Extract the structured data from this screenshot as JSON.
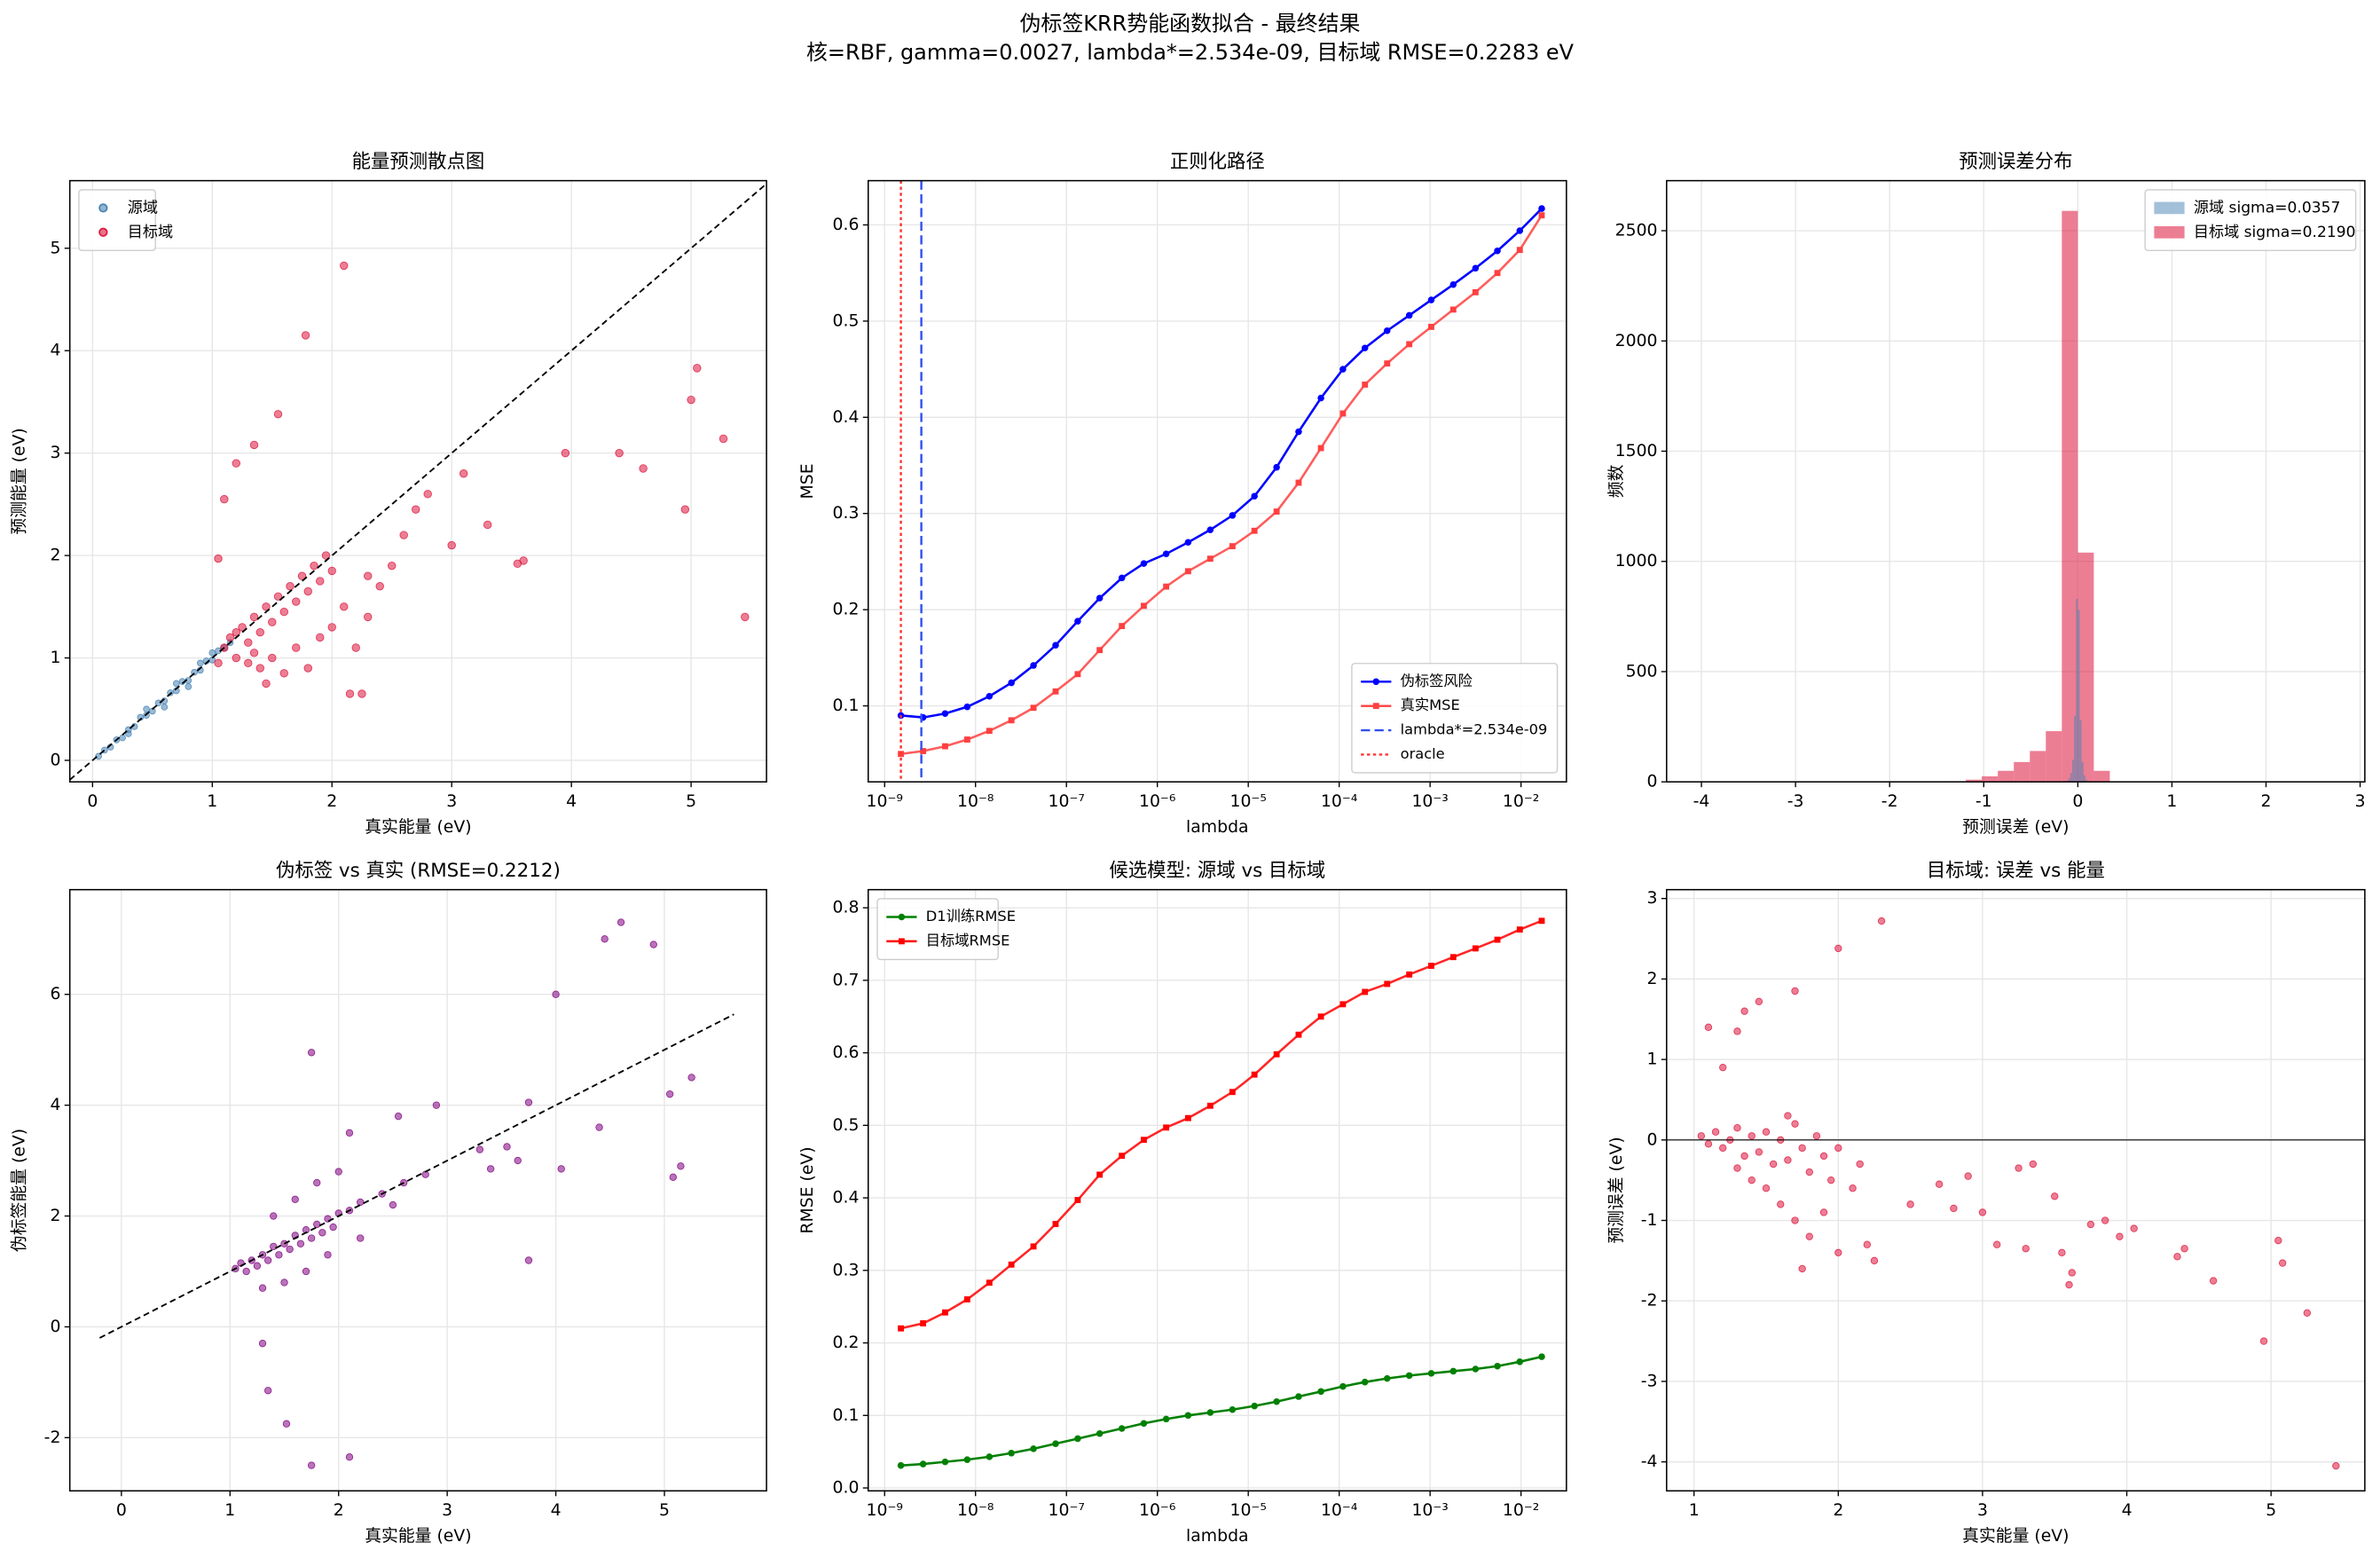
{
  "title": "伪标签KRR势能函数拟合 - 最终结果",
  "subtitle": "核=RBF, gamma=0.0027, lambda*=2.534e-09, 目标域 RMSE=0.2283 eV",
  "chart_data": [
    {
      "type": "scatter",
      "title": "能量预测散点图",
      "x_label": "真实能量 (eV)",
      "y_label": "预测能量 (eV)",
      "xlim": [
        -0.19,
        5.63
      ],
      "ylim": [
        -0.21,
        5.66
      ],
      "xticks": [
        0,
        1,
        2,
        3,
        4,
        5
      ],
      "yticks": [
        0,
        1,
        2,
        3,
        4,
        5
      ],
      "grid": true,
      "legend": "upper left",
      "reference_line": {
        "x": [
          -0.19,
          5.63
        ],
        "y": [
          -0.19,
          5.63
        ]
      },
      "series": [
        {
          "name": "源域",
          "color": "#4682b4",
          "marker_size": 2,
          "x": [
            0.05,
            0.1,
            0.15,
            0.2,
            0.25,
            0.3,
            0.35,
            0.4,
            0.45,
            0.5,
            0.55,
            0.6,
            0.65,
            0.7,
            0.75,
            0.8,
            0.85,
            0.9,
            0.95,
            1.0,
            1.05,
            1.1,
            1.15,
            0.45,
            0.6,
            0.8,
            0.9,
            1.0,
            0.7,
            0.3
          ],
          "y": [
            0.04,
            0.1,
            0.13,
            0.2,
            0.22,
            0.3,
            0.33,
            0.42,
            0.44,
            0.48,
            0.56,
            0.58,
            0.66,
            0.68,
            0.77,
            0.78,
            0.86,
            0.88,
            0.97,
            0.98,
            1.07,
            1.1,
            1.15,
            0.5,
            0.52,
            0.72,
            0.95,
            1.05,
            0.75,
            0.26
          ]
        },
        {
          "name": "目标域",
          "color": "#dc143c",
          "marker_size": 2.5,
          "x": [
            1.05,
            1.1,
            1.15,
            1.2,
            1.25,
            1.3,
            1.35,
            1.4,
            1.45,
            1.5,
            1.55,
            1.6,
            1.65,
            1.7,
            1.75,
            1.8,
            1.85,
            1.9,
            1.95,
            2.0,
            1.5,
            1.6,
            1.7,
            1.8,
            1.9,
            2.0,
            2.1,
            2.2,
            2.3,
            1.4,
            1.3,
            1.45,
            2.15,
            2.4,
            2.5,
            2.6,
            2.8,
            2.3,
            1.2,
            1.35,
            2.1,
            1.78,
            1.55,
            1.35,
            1.2,
            1.1,
            1.05,
            5.05,
            5.0,
            5.27,
            4.95,
            5.45,
            3.6,
            3.1,
            3.0,
            2.7,
            3.95,
            4.4,
            4.6,
            2.25,
            3.55,
            3.3
          ],
          "y": [
            0.95,
            1.1,
            1.2,
            1.0,
            1.3,
            1.15,
            1.4,
            1.25,
            1.5,
            1.35,
            1.6,
            1.45,
            1.7,
            1.55,
            1.8,
            1.65,
            1.9,
            1.75,
            2.0,
            1.85,
            1.0,
            0.85,
            1.1,
            0.9,
            1.2,
            1.3,
            1.5,
            1.1,
            1.4,
            0.9,
            0.95,
            0.75,
            0.65,
            1.7,
            1.9,
            2.2,
            2.6,
            1.8,
            1.25,
            1.05,
            4.83,
            4.15,
            3.38,
            3.08,
            2.9,
            2.55,
            1.97,
            3.83,
            3.52,
            3.14,
            2.45,
            1.4,
            1.95,
            2.8,
            2.1,
            2.45,
            3.0,
            3.0,
            2.85,
            0.65,
            1.92,
            2.3
          ]
        }
      ]
    },
    {
      "type": "line",
      "title": "正则化路径",
      "x_label": "lambda",
      "y_label": "MSE",
      "xscale": "log",
      "xlim": [
        6.6e-10,
        0.0316
      ],
      "ylim": [
        0.021,
        0.646
      ],
      "xticks": [
        {
          "value": 1e-09,
          "label": "10⁻⁹"
        },
        {
          "value": 1e-08,
          "label": "10⁻⁸"
        },
        {
          "value": 1e-07,
          "label": "10⁻⁷"
        },
        {
          "value": 1e-06,
          "label": "10⁻⁶"
        },
        {
          "value": 1e-05,
          "label": "10⁻⁵"
        },
        {
          "value": 0.0001,
          "label": "10⁻⁴"
        },
        {
          "value": 0.001,
          "label": "10⁻³"
        },
        {
          "value": 0.01,
          "label": "10⁻²"
        }
      ],
      "yticks": [
        0.1,
        0.2,
        0.3,
        0.4,
        0.5,
        0.6
      ],
      "grid": true,
      "legend": "lower right",
      "x": [
        1.51e-09,
        2.65e-09,
        4.63e-09,
        8.1e-09,
        1.42e-08,
        2.48e-08,
        4.34e-08,
        7.6e-08,
        1.33e-07,
        2.32e-07,
        4.07e-07,
        7.1e-07,
        1.25e-06,
        2.18e-06,
        3.82e-06,
        6.7e-06,
        1.17e-05,
        2.05e-05,
        3.58e-05,
        6.3e-05,
        0.00011,
        0.000192,
        0.000337,
        0.00059,
        0.00103,
        0.0018,
        0.00316,
        0.0055,
        0.0097,
        0.0169
      ],
      "series": [
        {
          "name": "伪标签风险",
          "color": "#0000ff",
          "marker": "o",
          "values": [
            0.09,
            0.088,
            0.092,
            0.099,
            0.11,
            0.124,
            0.142,
            0.163,
            0.188,
            0.212,
            0.233,
            0.248,
            0.258,
            0.27,
            0.283,
            0.298,
            0.318,
            0.348,
            0.385,
            0.42,
            0.45,
            0.472,
            0.49,
            0.506,
            0.522,
            0.538,
            0.555,
            0.573,
            0.594,
            0.617
          ]
        },
        {
          "name": "真实MSE",
          "color": "#ff4040",
          "marker": "s",
          "values": [
            0.05,
            0.053,
            0.058,
            0.065,
            0.074,
            0.085,
            0.098,
            0.115,
            0.133,
            0.158,
            0.183,
            0.204,
            0.224,
            0.24,
            0.253,
            0.266,
            0.282,
            0.302,
            0.332,
            0.368,
            0.404,
            0.434,
            0.456,
            0.476,
            0.494,
            0.512,
            0.53,
            0.55,
            0.574,
            0.61
          ]
        }
      ],
      "vlines": [
        {
          "name": "lambda*=2.534e-09",
          "x": 2.534e-09,
          "color": "#3050f0",
          "style": "dashed"
        },
        {
          "name": "oracle",
          "x": 1.51e-09,
          "color": "#ff3030",
          "style": "dotted"
        }
      ]
    },
    {
      "type": "histogram",
      "title": "预测误差分布",
      "x_label": "预测误差 (eV)",
      "y_label": "频数",
      "xlim": [
        -4.37,
        3.05
      ],
      "ylim": [
        0,
        2727
      ],
      "xticks": [
        -4,
        -3,
        -2,
        -1,
        0,
        1,
        2,
        3
      ],
      "yticks": [
        0,
        500,
        1000,
        1500,
        2000,
        2500
      ],
      "grid": true,
      "legend": "upper right",
      "series": [
        {
          "name": "源域 sigma=0.0357",
          "color": "#4682b4",
          "bins": [
            -0.12,
            -0.1,
            -0.08,
            -0.06,
            -0.04,
            -0.02,
            0,
            0.02,
            0.04,
            0.06,
            0.08,
            0.1,
            0.12
          ],
          "values": [
            5,
            15,
            40,
            100,
            300,
            830,
            780,
            280,
            90,
            30,
            10,
            3
          ]
        },
        {
          "name": "目标域 sigma=0.2190",
          "color": "#dc143c",
          "bins": [
            -1.36,
            -1.19,
            -1.02,
            -0.85,
            -0.68,
            -0.51,
            -0.34,
            -0.17,
            0,
            0.17,
            0.34
          ],
          "values": [
            3,
            10,
            25,
            50,
            90,
            140,
            230,
            2590,
            1040,
            50
          ]
        }
      ]
    },
    {
      "type": "scatter",
      "title": "伪标签 vs 真实 (RMSE=0.2212)",
      "x_label": "真实能量 (eV)",
      "y_label": "伪标签能量 (eV)",
      "xlim": [
        -0.475,
        5.94
      ],
      "ylim": [
        -2.96,
        7.89
      ],
      "xticks": [
        0,
        1,
        2,
        3,
        4,
        5
      ],
      "yticks": [
        -2,
        0,
        2,
        4,
        6
      ],
      "grid": true,
      "reference_line": {
        "x": [
          -0.2,
          5.64
        ],
        "y": [
          -0.2,
          5.64
        ]
      },
      "series": [
        {
          "color": "#800080",
          "marker_size": 2.2,
          "x": [
            1.05,
            1.1,
            1.15,
            1.2,
            1.25,
            1.3,
            1.35,
            1.4,
            1.45,
            1.5,
            1.55,
            1.6,
            1.65,
            1.7,
            1.75,
            1.8,
            1.85,
            1.9,
            1.95,
            2.0,
            2.1,
            2.2,
            2.4,
            2.6,
            2.8,
            1.5,
            1.7,
            1.9,
            1.6,
            1.8,
            2.0,
            1.4,
            2.2,
            1.3,
            2.5,
            4.6,
            4.45,
            4.9,
            4.0,
            5.25,
            5.05,
            5.15,
            5.08,
            4.05,
            4.4,
            3.75,
            3.75,
            3.55,
            3.65,
            1.75,
            1.3,
            1.35,
            1.52,
            1.75,
            2.1,
            2.1,
            2.9,
            2.55,
            3.3,
            3.4
          ],
          "y": [
            1.05,
            1.15,
            1.0,
            1.2,
            1.1,
            1.3,
            1.2,
            1.45,
            1.3,
            1.5,
            1.4,
            1.65,
            1.5,
            1.75,
            1.6,
            1.85,
            1.7,
            1.95,
            1.8,
            2.05,
            2.1,
            2.25,
            2.4,
            2.6,
            2.75,
            0.8,
            1.0,
            1.3,
            2.3,
            2.6,
            2.8,
            2.0,
            1.6,
            0.7,
            2.2,
            7.3,
            7.0,
            6.9,
            6.0,
            4.5,
            4.2,
            2.9,
            2.7,
            2.85,
            3.6,
            1.2,
            4.05,
            3.25,
            3.0,
            4.95,
            -0.3,
            -1.15,
            -1.75,
            -2.5,
            -2.35,
            3.5,
            4.0,
            3.8,
            3.2,
            2.85
          ]
        }
      ]
    },
    {
      "type": "line",
      "title": "候选模型: 源域 vs 目标域",
      "x_label": "lambda",
      "y_label": "RMSE (eV)",
      "xscale": "log",
      "xlim": [
        6.6e-10,
        0.0316
      ],
      "ylim": [
        -0.004,
        0.825
      ],
      "xticks": [
        {
          "value": 1e-09,
          "label": "10⁻⁹"
        },
        {
          "value": 1e-08,
          "label": "10⁻⁸"
        },
        {
          "value": 1e-07,
          "label": "10⁻⁷"
        },
        {
          "value": 1e-06,
          "label": "10⁻⁶"
        },
        {
          "value": 1e-05,
          "label": "10⁻⁵"
        },
        {
          "value": 0.0001,
          "label": "10⁻⁴"
        },
        {
          "value": 0.001,
          "label": "10⁻³"
        },
        {
          "value": 0.01,
          "label": "10⁻²"
        }
      ],
      "yticks": [
        {
          "value": 0,
          "label": "0.0"
        },
        0.1,
        0.2,
        0.3,
        0.4,
        0.5,
        0.6,
        0.7,
        0.8
      ],
      "grid": true,
      "legend": "upper left",
      "x": [
        1.51e-09,
        2.65e-09,
        4.63e-09,
        8.1e-09,
        1.42e-08,
        2.48e-08,
        4.34e-08,
        7.6e-08,
        1.33e-07,
        2.32e-07,
        4.07e-07,
        7.1e-07,
        1.25e-06,
        2.18e-06,
        3.82e-06,
        6.7e-06,
        1.17e-05,
        2.05e-05,
        3.58e-05,
        6.3e-05,
        0.00011,
        0.000192,
        0.000337,
        0.00059,
        0.00103,
        0.0018,
        0.00316,
        0.0055,
        0.0097,
        0.0169
      ],
      "series": [
        {
          "name": "D1训练RMSE",
          "color": "#008000",
          "marker": "o",
          "values": [
            0.031,
            0.033,
            0.036,
            0.039,
            0.043,
            0.048,
            0.054,
            0.061,
            0.068,
            0.075,
            0.082,
            0.089,
            0.095,
            0.1,
            0.104,
            0.108,
            0.113,
            0.119,
            0.126,
            0.133,
            0.14,
            0.146,
            0.151,
            0.155,
            0.158,
            0.161,
            0.164,
            0.168,
            0.174,
            0.181
          ]
        },
        {
          "name": "目标域RMSE",
          "color": "#ff0000",
          "marker": "s",
          "values": [
            0.22,
            0.227,
            0.242,
            0.26,
            0.283,
            0.308,
            0.333,
            0.364,
            0.397,
            0.432,
            0.458,
            0.48,
            0.497,
            0.51,
            0.527,
            0.546,
            0.57,
            0.598,
            0.625,
            0.65,
            0.667,
            0.684,
            0.695,
            0.708,
            0.72,
            0.732,
            0.744,
            0.756,
            0.77,
            0.782
          ]
        }
      ]
    },
    {
      "type": "scatter",
      "title": "目标域: 误差 vs 能量",
      "x_label": "真实能量 (eV)",
      "y_label": "预测误差 (eV)",
      "xlim": [
        0.81,
        5.65
      ],
      "ylim": [
        -4.36,
        3.11
      ],
      "xticks": [
        1,
        2,
        3,
        4,
        5
      ],
      "yticks": [
        -4,
        -3,
        -2,
        -1,
        0,
        1,
        2,
        3
      ],
      "grid": true,
      "hline": 0,
      "series": [
        {
          "color": "#dc143c",
          "marker_size": 2.2,
          "x": [
            1.05,
            1.1,
            1.15,
            1.2,
            1.25,
            1.3,
            1.35,
            1.4,
            1.45,
            1.5,
            1.55,
            1.6,
            1.65,
            1.7,
            1.75,
            1.8,
            1.85,
            1.9,
            1.95,
            2.0,
            1.5,
            1.6,
            1.7,
            1.8,
            1.9,
            2.0,
            2.1,
            1.4,
            1.3,
            1.65,
            1.75,
            2.15,
            1.2,
            1.3,
            1.35,
            1.45,
            1.7,
            2.0,
            2.3,
            1.1,
            5.45,
            4.95,
            5.25,
            5.05,
            5.08,
            4.6,
            4.4,
            4.35,
            4.05,
            3.95,
            3.6,
            3.62,
            3.55,
            3.25,
            3.3,
            3.1,
            3.0,
            2.8,
            2.7,
            2.5,
            2.25,
            2.2,
            2.9,
            3.5,
            3.75,
            3.35,
            3.85
          ],
          "y": [
            0.05,
            -0.05,
            0.1,
            -0.1,
            0.0,
            0.15,
            -0.2,
            0.05,
            -0.15,
            0.1,
            -0.3,
            0.0,
            -0.25,
            0.2,
            -0.1,
            -0.4,
            0.05,
            -0.2,
            -0.5,
            -0.1,
            -0.6,
            -0.8,
            -1.0,
            -1.2,
            -0.9,
            -1.4,
            -0.6,
            -0.5,
            -0.35,
            0.3,
            -1.6,
            -0.3,
            0.9,
            1.35,
            1.6,
            1.72,
            1.85,
            2.38,
            2.72,
            1.4,
            -4.05,
            -2.5,
            -2.15,
            -1.25,
            -1.53,
            -1.75,
            -1.35,
            -1.45,
            -1.1,
            -1.2,
            -1.8,
            -1.65,
            -1.4,
            -0.35,
            -1.35,
            -1.3,
            -0.9,
            -0.85,
            -0.55,
            -0.8,
            -1.5,
            -1.3,
            -0.45,
            -0.7,
            -1.05,
            -0.3,
            -1.0
          ]
        }
      ]
    }
  ]
}
